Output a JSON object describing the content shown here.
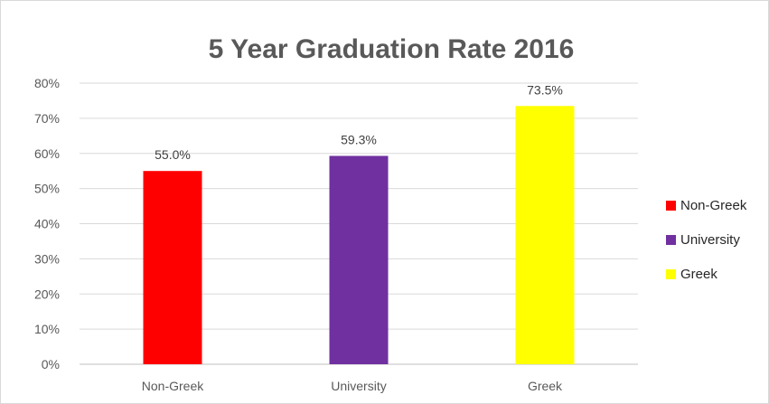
{
  "chart_data": {
    "type": "bar",
    "title": "5 Year Graduation Rate 2016",
    "xlabel": "",
    "ylabel": "",
    "categories": [
      "Non-Greek",
      "University",
      "Greek"
    ],
    "values": [
      55.0,
      59.3,
      73.5
    ],
    "data_labels": [
      "55.0%",
      "59.3%",
      "73.5%"
    ],
    "colors": [
      "#ff0000",
      "#7030a0",
      "#ffff00"
    ],
    "ylim": [
      0,
      80
    ],
    "yticks": [
      0,
      10,
      20,
      30,
      40,
      50,
      60,
      70,
      80
    ],
    "ytick_labels": [
      "0%",
      "10%",
      "20%",
      "30%",
      "40%",
      "50%",
      "60%",
      "70%",
      "80%"
    ],
    "grid": true,
    "legend": {
      "position": "right",
      "entries": [
        "Non-Greek",
        "University",
        "Greek"
      ]
    }
  }
}
